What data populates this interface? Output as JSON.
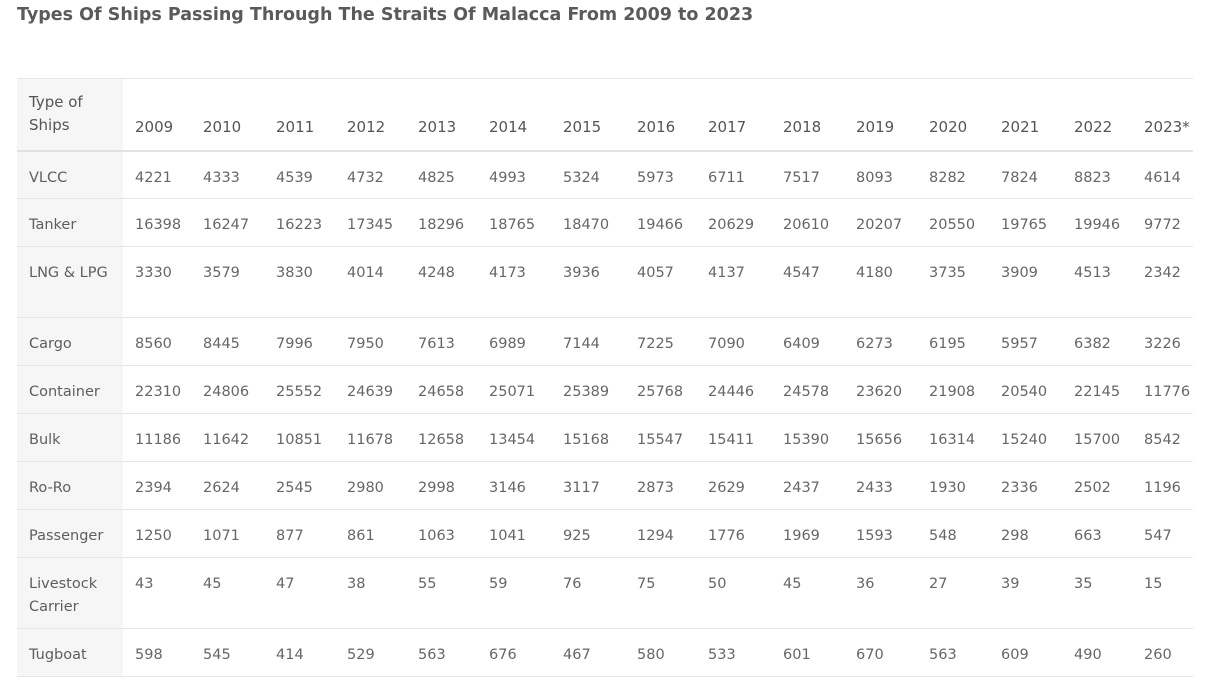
{
  "title": "Types Of Ships Passing Through The Straits Of Malacca From 2009 to 2023",
  "table": {
    "type_header": "Type of Ships",
    "years": [
      "2009",
      "2010",
      "2011",
      "2012",
      "2013",
      "2014",
      "2015",
      "2016",
      "2017",
      "2018",
      "2019",
      "2020",
      "2021",
      "2022",
      "2023*"
    ],
    "rows": [
      {
        "type": "VLCC",
        "values": [
          "4221",
          "4333",
          "4539",
          "4732",
          "4825",
          "4993",
          "5324",
          "5973",
          "6711",
          "7517",
          "8093",
          "8282",
          "7824",
          "8823",
          "4614"
        ]
      },
      {
        "type": "Tanker",
        "values": [
          "16398",
          "16247",
          "16223",
          "17345",
          "18296",
          "18765",
          "18470",
          "19466",
          "20629",
          "20610",
          "20207",
          "20550",
          "19765",
          "19946",
          "9772"
        ]
      },
      {
        "type": "LNG & LPG",
        "values": [
          "3330",
          "3579",
          "3830",
          "4014",
          "4248",
          "4173",
          "3936",
          "4057",
          "4137",
          "4547",
          "4180",
          "3735",
          "3909",
          "4513",
          "2342"
        ]
      },
      {
        "type": "Cargo",
        "values": [
          "8560",
          "8445",
          "7996",
          "7950",
          "7613",
          "6989",
          "7144",
          "7225",
          "7090",
          "6409",
          "6273",
          "6195",
          "5957",
          "6382",
          "3226"
        ]
      },
      {
        "type": "Container",
        "values": [
          "22310",
          "24806",
          "25552",
          "24639",
          "24658",
          "25071",
          "25389",
          "25768",
          "24446",
          "24578",
          "23620",
          "21908",
          "20540",
          "22145",
          "11776"
        ]
      },
      {
        "type": "Bulk",
        "values": [
          "11186",
          "11642",
          "10851",
          "11678",
          "12658",
          "13454",
          "15168",
          "15547",
          "15411",
          "15390",
          "15656",
          "16314",
          "15240",
          "15700",
          "8542"
        ]
      },
      {
        "type": "Ro-Ro",
        "values": [
          "2394",
          "2624",
          "2545",
          "2980",
          "2998",
          "3146",
          "3117",
          "2873",
          "2629",
          "2437",
          "2433",
          "1930",
          "2336",
          "2502",
          "1196"
        ]
      },
      {
        "type": "Passenger",
        "values": [
          "1250",
          "1071",
          "877",
          "861",
          "1063",
          "1041",
          "925",
          "1294",
          "1776",
          "1969",
          "1593",
          "548",
          "298",
          "663",
          "547"
        ]
      },
      {
        "type": "Livestock Carrier",
        "values": [
          "43",
          "45",
          "47",
          "38",
          "55",
          "59",
          "76",
          "75",
          "50",
          "45",
          "36",
          "27",
          "39",
          "35",
          "15"
        ]
      },
      {
        "type": "Tugboat",
        "values": [
          "598",
          "545",
          "414",
          "529",
          "563",
          "676",
          "467",
          "580",
          "533",
          "601",
          "670",
          "563",
          "609",
          "490",
          "260"
        ]
      }
    ]
  }
}
